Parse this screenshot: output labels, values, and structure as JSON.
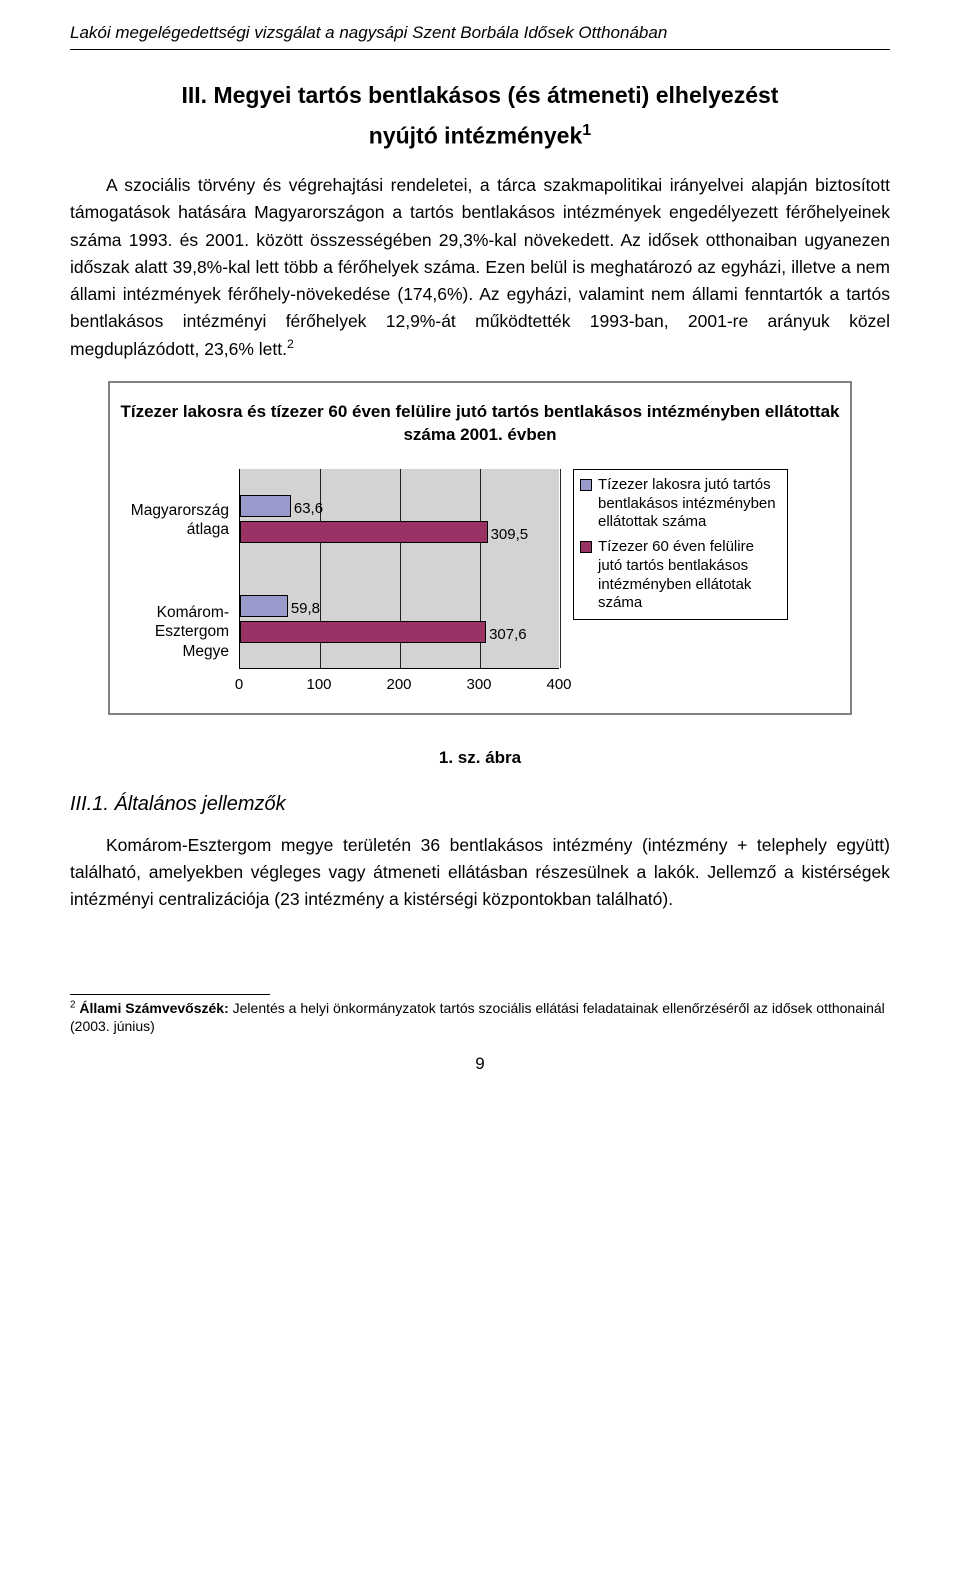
{
  "header": "Lakói megelégedettségi vizsgálat a nagysápi Szent Borbála Idősek Otthonában",
  "section_title_line1": "III. Megyei tartós bentlakásos (és átmeneti) elhelyezést",
  "section_title_line2": "nyújtó intézmények",
  "section_title_sup": "1",
  "paragraph1": "A szociális törvény és végrehajtási rendeletei, a tárca szakmapolitikai irányelvei alapján biztosított támogatások hatására Magyarországon a tartós bentlakásos intézmények engedélyezett férőhelyeinek száma 1993. és 2001. között összességében 29,3%-kal növekedett. Az idősek otthonaiban ugyanezen időszak alatt 39,8%-kal lett több a férőhelyek száma. Ezen belül is meghatározó az egyházi, illetve a nem állami intézmények férőhely-növekedése (174,6%). Az egyházi, valamint nem állami fenntartók a tartós bentlakásos intézményi férőhelyek 12,9%-át működtették 1993-ban, 2001-re arányuk közel megduplázódott, 23,6% lett.",
  "paragraph1_sup": "2",
  "chart": {
    "type": "bar-horizontal-grouped",
    "title": "Tízezer lakosra és tízezer 60 éven felülire jutó tartós bentlakásos intézményben ellátottak száma 2001. évben",
    "background_color": "#d3d3d3",
    "grid_color": "#000000",
    "xlim": [
      0,
      400
    ],
    "xticks": [
      0,
      100,
      200,
      300,
      400
    ],
    "categories": [
      "Magyarország átlaga",
      "Komárom-Esztergom Megye"
    ],
    "series": [
      {
        "name": "Tízezer lakosra jutó tartós bentlakásos intézményben ellátottak száma",
        "color": "#9999cc",
        "values": [
          63.6,
          59.8
        ],
        "labels": [
          "63,6",
          "59,8"
        ]
      },
      {
        "name": "Tízezer 60 éven felülire jutó tartós bentlakásos intézményben ellátotak száma",
        "color": "#993366",
        "values": [
          309.5,
          307.6
        ],
        "labels": [
          "309,5",
          "307,6"
        ]
      }
    ],
    "legend_border_color": "#000000",
    "axis_color": "#000000",
    "title_fontsize": 17,
    "label_fontsize": 15
  },
  "fig_caption": "1. sz. ábra",
  "subheading": "III.1. Általános jellemzők",
  "paragraph2": "Komárom-Esztergom megye területén 36 bentlakásos intézmény (intézmény + telephely együtt) található, amelyekben végleges vagy átmeneti ellátásban részesülnek a lakók. Jellemző a kistérségek intézményi centralizációja (23 intézmény a kistérségi központokban található).",
  "footnote_sup": "2",
  "footnote_bold": "Állami Számvevőszék:",
  "footnote_rest": " Jelentés a helyi önkormányzatok tartós szociális ellátási feladatainak ellenőrzéséről az idősek otthonainál (2003. június)",
  "pagenum": "9"
}
